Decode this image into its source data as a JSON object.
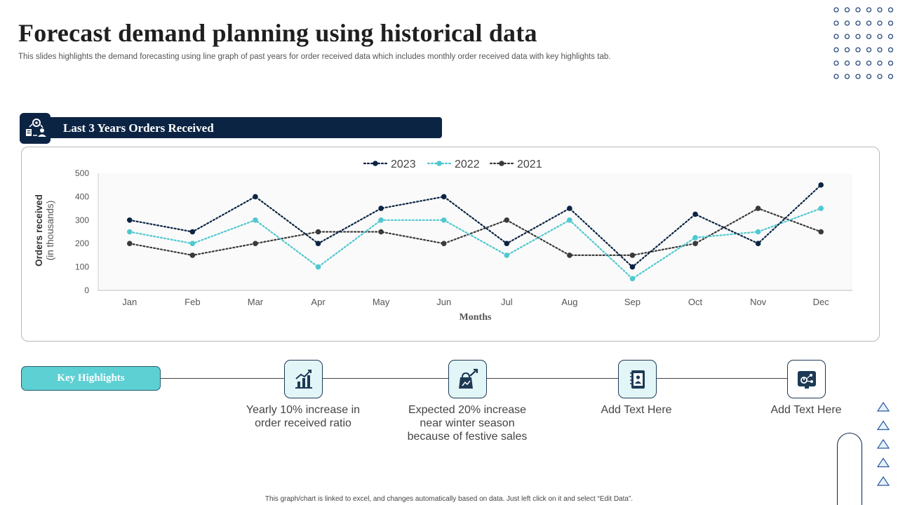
{
  "header": {
    "title": "Forecast demand planning using historical data",
    "subtitle": "This slides highlights the demand forecasting using line graph of past years for order received data which includes monthly order received data with key highlights tab."
  },
  "section": {
    "label": "Last 3 Years Orders Received",
    "icon": "process-gear-icon"
  },
  "colors": {
    "navy": "#0c2444",
    "teal": "#4fc8d0",
    "gray_series": "#3a3a3a"
  },
  "chart_data": {
    "type": "line",
    "title": "",
    "xlabel": "Months",
    "ylabel": "Orders received",
    "ylabel_sub": "(in thousands)",
    "ylim": [
      0,
      500
    ],
    "yticks": [
      0,
      100,
      200,
      300,
      400,
      500
    ],
    "categories": [
      "Jan",
      "Feb",
      "Mar",
      "Apr",
      "May",
      "Jun",
      "Jul",
      "Aug",
      "Sep",
      "Oct",
      "Nov",
      "Dec"
    ],
    "legend_position": "top-center",
    "series": [
      {
        "name": "2023",
        "color": "#0c2444",
        "values": [
          300,
          250,
          400,
          200,
          350,
          400,
          200,
          350,
          100,
          325,
          200,
          450
        ]
      },
      {
        "name": "2022",
        "color": "#4fc8d0",
        "values": [
          250,
          200,
          300,
          100,
          300,
          300,
          150,
          300,
          50,
          225,
          250,
          350
        ]
      },
      {
        "name": "2021",
        "color": "#3a3a3a",
        "values": [
          200,
          150,
          200,
          250,
          250,
          200,
          300,
          150,
          150,
          200,
          350,
          250
        ]
      }
    ]
  },
  "highlights": {
    "label": "Key Highlights",
    "items": [
      {
        "icon": "growth-chart-icon",
        "text": "Yearly  10% increase in order received ratio"
      },
      {
        "icon": "shopping-bag-growth-icon",
        "text": "Expected 20% increase near winter season because of festive sales"
      },
      {
        "icon": "contact-book-icon",
        "text": "Add Text Here"
      },
      {
        "icon": "analytics-board-icon",
        "text": "Add Text Here"
      }
    ]
  },
  "footer": {
    "note": "This graph/chart is linked to excel, and changes automatically based on data. Just left click on it and select “Edit Data”."
  }
}
